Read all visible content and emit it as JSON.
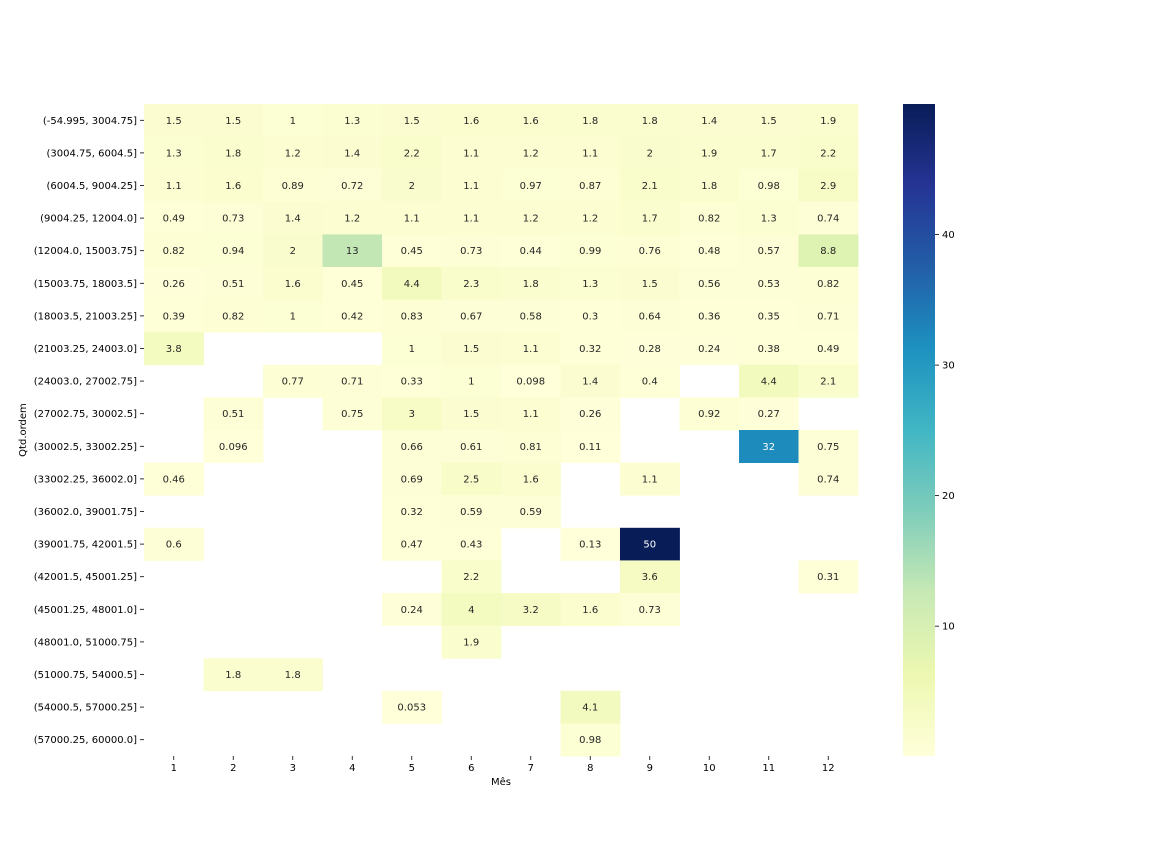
{
  "chart_data": {
    "type": "heatmap",
    "title": "",
    "xlabel": "Mês",
    "ylabel": "Qtd.ordem",
    "x_categories": [
      "1",
      "2",
      "3",
      "4",
      "5",
      "6",
      "7",
      "8",
      "9",
      "10",
      "11",
      "12"
    ],
    "y_categories": [
      "(-54.995, 3004.75]",
      "(3004.75, 6004.5]",
      "(6004.5, 9004.25]",
      "(9004.25, 12004.0]",
      "(12004.0, 15003.75]",
      "(15003.75, 18003.5]",
      "(18003.5, 21003.25]",
      "(21003.25, 24003.0]",
      "(24003.0, 27002.75]",
      "(27002.75, 30002.5]",
      "(30002.5, 33002.25]",
      "(33002.25, 36002.0]",
      "(36002.0, 39001.75]",
      "(39001.75, 42001.5]",
      "(42001.5, 45001.25]",
      "(45001.25, 48001.0]",
      "(48001.0, 51000.75]",
      "(51000.75, 54000.5]",
      "(54000.5, 57000.25]",
      "(57000.25, 60000.0]"
    ],
    "annotations": [
      [
        "1.5",
        "1.5",
        "1",
        "1.3",
        "1.5",
        "1.6",
        "1.6",
        "1.8",
        "1.8",
        "1.4",
        "1.5",
        "1.9"
      ],
      [
        "1.3",
        "1.8",
        "1.2",
        "1.4",
        "2.2",
        "1.1",
        "1.2",
        "1.1",
        "2",
        "1.9",
        "1.7",
        "2.2"
      ],
      [
        "1.1",
        "1.6",
        "0.89",
        "0.72",
        "2",
        "1.1",
        "0.97",
        "0.87",
        "2.1",
        "1.8",
        "0.98",
        "2.9"
      ],
      [
        "0.49",
        "0.73",
        "1.4",
        "1.2",
        "1.1",
        "1.1",
        "1.2",
        "1.2",
        "1.7",
        "0.82",
        "1.3",
        "0.74"
      ],
      [
        "0.82",
        "0.94",
        "2",
        "13",
        "0.45",
        "0.73",
        "0.44",
        "0.99",
        "0.76",
        "0.48",
        "0.57",
        "8.8"
      ],
      [
        "0.26",
        "0.51",
        "1.6",
        "0.45",
        "4.4",
        "2.3",
        "1.8",
        "1.3",
        "1.5",
        "0.56",
        "0.53",
        "0.82"
      ],
      [
        "0.39",
        "0.82",
        "1",
        "0.42",
        "0.83",
        "0.67",
        "0.58",
        "0.3",
        "0.64",
        "0.36",
        "0.35",
        "0.71"
      ],
      [
        "3.8",
        null,
        null,
        null,
        "1",
        "1.5",
        "1.1",
        "0.32",
        "0.28",
        "0.24",
        "0.38",
        "0.49"
      ],
      [
        null,
        null,
        "0.77",
        "0.71",
        "0.33",
        "1",
        "0.098",
        "1.4",
        "0.4",
        null,
        "4.4",
        "2.1"
      ],
      [
        null,
        "0.51",
        null,
        "0.75",
        "3",
        "1.5",
        "1.1",
        "0.26",
        null,
        "0.92",
        "0.27",
        null
      ],
      [
        null,
        "0.096",
        null,
        null,
        "0.66",
        "0.61",
        "0.81",
        "0.11",
        null,
        null,
        "32",
        "0.75"
      ],
      [
        "0.46",
        null,
        null,
        null,
        "0.69",
        "2.5",
        "1.6",
        null,
        "1.1",
        null,
        null,
        "0.74"
      ],
      [
        null,
        null,
        null,
        null,
        "0.32",
        "0.59",
        "0.59",
        null,
        null,
        null,
        null,
        null
      ],
      [
        "0.6",
        null,
        null,
        null,
        "0.47",
        "0.43",
        null,
        "0.13",
        "50",
        null,
        null,
        null
      ],
      [
        null,
        null,
        null,
        null,
        null,
        "2.2",
        null,
        null,
        "3.6",
        null,
        null,
        "0.31"
      ],
      [
        null,
        null,
        null,
        null,
        "0.24",
        "4",
        "3.2",
        "1.6",
        "0.73",
        null,
        null,
        null
      ],
      [
        null,
        null,
        null,
        null,
        null,
        "1.9",
        null,
        null,
        null,
        null,
        null,
        null
      ],
      [
        null,
        "1.8",
        "1.8",
        null,
        null,
        null,
        null,
        null,
        null,
        null,
        null,
        null
      ],
      [
        null,
        null,
        null,
        null,
        "0.053",
        null,
        null,
        "4.1",
        null,
        null,
        null,
        null
      ],
      [
        null,
        null,
        null,
        null,
        null,
        null,
        null,
        "0.98",
        null,
        null,
        null,
        null
      ]
    ],
    "colormap": [
      "#ffffd9",
      "#edf8b1",
      "#c7e9b4",
      "#7fcdbb",
      "#41b6c4",
      "#1d91c0",
      "#225ea8",
      "#253494",
      "#081d58"
    ],
    "vmin": 0.053,
    "vmax": 50,
    "colorbar_ticks": [
      10,
      20,
      30,
      40
    ],
    "colorbar_tick_labels": [
      "10",
      "20",
      "30",
      "40"
    ],
    "grid": false,
    "legend": "colorbar-right"
  }
}
